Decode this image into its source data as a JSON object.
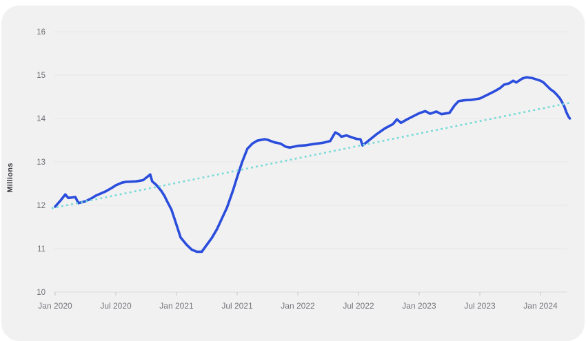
{
  "colors": {
    "card_background": "#f1f1f2",
    "page_background": "#ffffff",
    "data_line": "#2b4ddc",
    "trend_line": "#74dad6",
    "gridline": "#e6e6e8",
    "axis_baseline": "#dadadd",
    "tick_mark": "#c8c8cb",
    "tick_text": "#6e6e74",
    "axis_title_text": "#3a3a3f"
  },
  "chart_data": {
    "type": "line",
    "title": "",
    "xlabel": "",
    "ylabel": "Millions",
    "ylim": [
      10,
      16
    ],
    "yticks": [
      10,
      11,
      12,
      13,
      14,
      15,
      16
    ],
    "grid": true,
    "legend": "none",
    "x_unit": "months since Jan 2020",
    "xticks": [
      {
        "m": 0,
        "label": "Jan 2020"
      },
      {
        "m": 6,
        "label": "Jul 2020"
      },
      {
        "m": 12,
        "label": "Jan 2021"
      },
      {
        "m": 18,
        "label": "Jul 2021"
      },
      {
        "m": 24,
        "label": "Jan 2022"
      },
      {
        "m": 30,
        "label": "Jul 2022"
      },
      {
        "m": 36,
        "label": "Jan 2023"
      },
      {
        "m": 42,
        "label": "Jul 2023"
      },
      {
        "m": 48,
        "label": "Jan 2024"
      }
    ],
    "series": [
      {
        "name": "actual",
        "color": "#2b4ddc",
        "style": "solid",
        "points": [
          [
            0,
            11.97
          ],
          [
            0.5,
            12.1
          ],
          [
            1,
            12.25
          ],
          [
            1.3,
            12.17
          ],
          [
            2,
            12.19
          ],
          [
            2.3,
            12.05
          ],
          [
            3,
            12.09
          ],
          [
            3.6,
            12.16
          ],
          [
            4,
            12.22
          ],
          [
            5,
            12.32
          ],
          [
            5.6,
            12.4
          ],
          [
            6,
            12.46
          ],
          [
            6.6,
            12.52
          ],
          [
            7,
            12.54
          ],
          [
            8,
            12.55
          ],
          [
            8.7,
            12.58
          ],
          [
            9.4,
            12.71
          ],
          [
            9.6,
            12.55
          ],
          [
            10,
            12.47
          ],
          [
            10.5,
            12.33
          ],
          [
            10.8,
            12.22
          ],
          [
            11.1,
            12.08
          ],
          [
            11.5,
            11.9
          ],
          [
            12,
            11.55
          ],
          [
            12.4,
            11.26
          ],
          [
            13,
            11.09
          ],
          [
            13.5,
            10.98
          ],
          [
            14,
            10.93
          ],
          [
            14.5,
            10.93
          ],
          [
            15,
            11.09
          ],
          [
            15.5,
            11.25
          ],
          [
            16,
            11.45
          ],
          [
            16.5,
            11.7
          ],
          [
            17,
            11.95
          ],
          [
            17.6,
            12.35
          ],
          [
            18,
            12.65
          ],
          [
            18.5,
            13.0
          ],
          [
            19,
            13.3
          ],
          [
            19.5,
            13.42
          ],
          [
            20,
            13.49
          ],
          [
            20.7,
            13.52
          ],
          [
            21,
            13.51
          ],
          [
            21.7,
            13.45
          ],
          [
            22.3,
            13.42
          ],
          [
            22.8,
            13.35
          ],
          [
            23.2,
            13.33
          ],
          [
            23.6,
            13.35
          ],
          [
            24,
            13.37
          ],
          [
            24.7,
            13.38
          ],
          [
            25.5,
            13.41
          ],
          [
            26.5,
            13.44
          ],
          [
            27.2,
            13.48
          ],
          [
            27.7,
            13.68
          ],
          [
            28.1,
            13.63
          ],
          [
            28.3,
            13.58
          ],
          [
            28.8,
            13.61
          ],
          [
            29.4,
            13.56
          ],
          [
            29.8,
            13.53
          ],
          [
            30.2,
            13.52
          ],
          [
            30.4,
            13.38
          ],
          [
            31,
            13.49
          ],
          [
            31.8,
            13.64
          ],
          [
            32.6,
            13.77
          ],
          [
            33.4,
            13.87
          ],
          [
            33.8,
            13.98
          ],
          [
            34.2,
            13.9
          ],
          [
            34.8,
            13.98
          ],
          [
            35.4,
            14.05
          ],
          [
            36,
            14.12
          ],
          [
            36.6,
            14.17
          ],
          [
            37.1,
            14.11
          ],
          [
            37.7,
            14.16
          ],
          [
            38.2,
            14.1
          ],
          [
            39,
            14.13
          ],
          [
            39.5,
            14.3
          ],
          [
            39.9,
            14.4
          ],
          [
            40.5,
            14.42
          ],
          [
            41.2,
            14.43
          ],
          [
            42,
            14.46
          ],
          [
            42.7,
            14.54
          ],
          [
            43.4,
            14.62
          ],
          [
            44,
            14.7
          ],
          [
            44.4,
            14.78
          ],
          [
            44.9,
            14.81
          ],
          [
            45.3,
            14.87
          ],
          [
            45.6,
            14.83
          ],
          [
            46.2,
            14.92
          ],
          [
            46.6,
            14.95
          ],
          [
            47.2,
            14.93
          ],
          [
            47.6,
            14.9
          ],
          [
            48,
            14.87
          ],
          [
            48.3,
            14.83
          ],
          [
            48.6,
            14.76
          ],
          [
            49,
            14.67
          ],
          [
            49.3,
            14.62
          ],
          [
            49.6,
            14.55
          ],
          [
            49.9,
            14.47
          ],
          [
            50.1,
            14.39
          ],
          [
            50.35,
            14.28
          ],
          [
            50.55,
            14.15
          ],
          [
            50.75,
            14.05
          ],
          [
            50.9,
            14.0
          ]
        ]
      },
      {
        "name": "trend",
        "color": "#74dad6",
        "style": "dotted",
        "points": [
          [
            -0.35,
            11.93
          ],
          [
            50.9,
            14.36
          ]
        ]
      }
    ]
  }
}
